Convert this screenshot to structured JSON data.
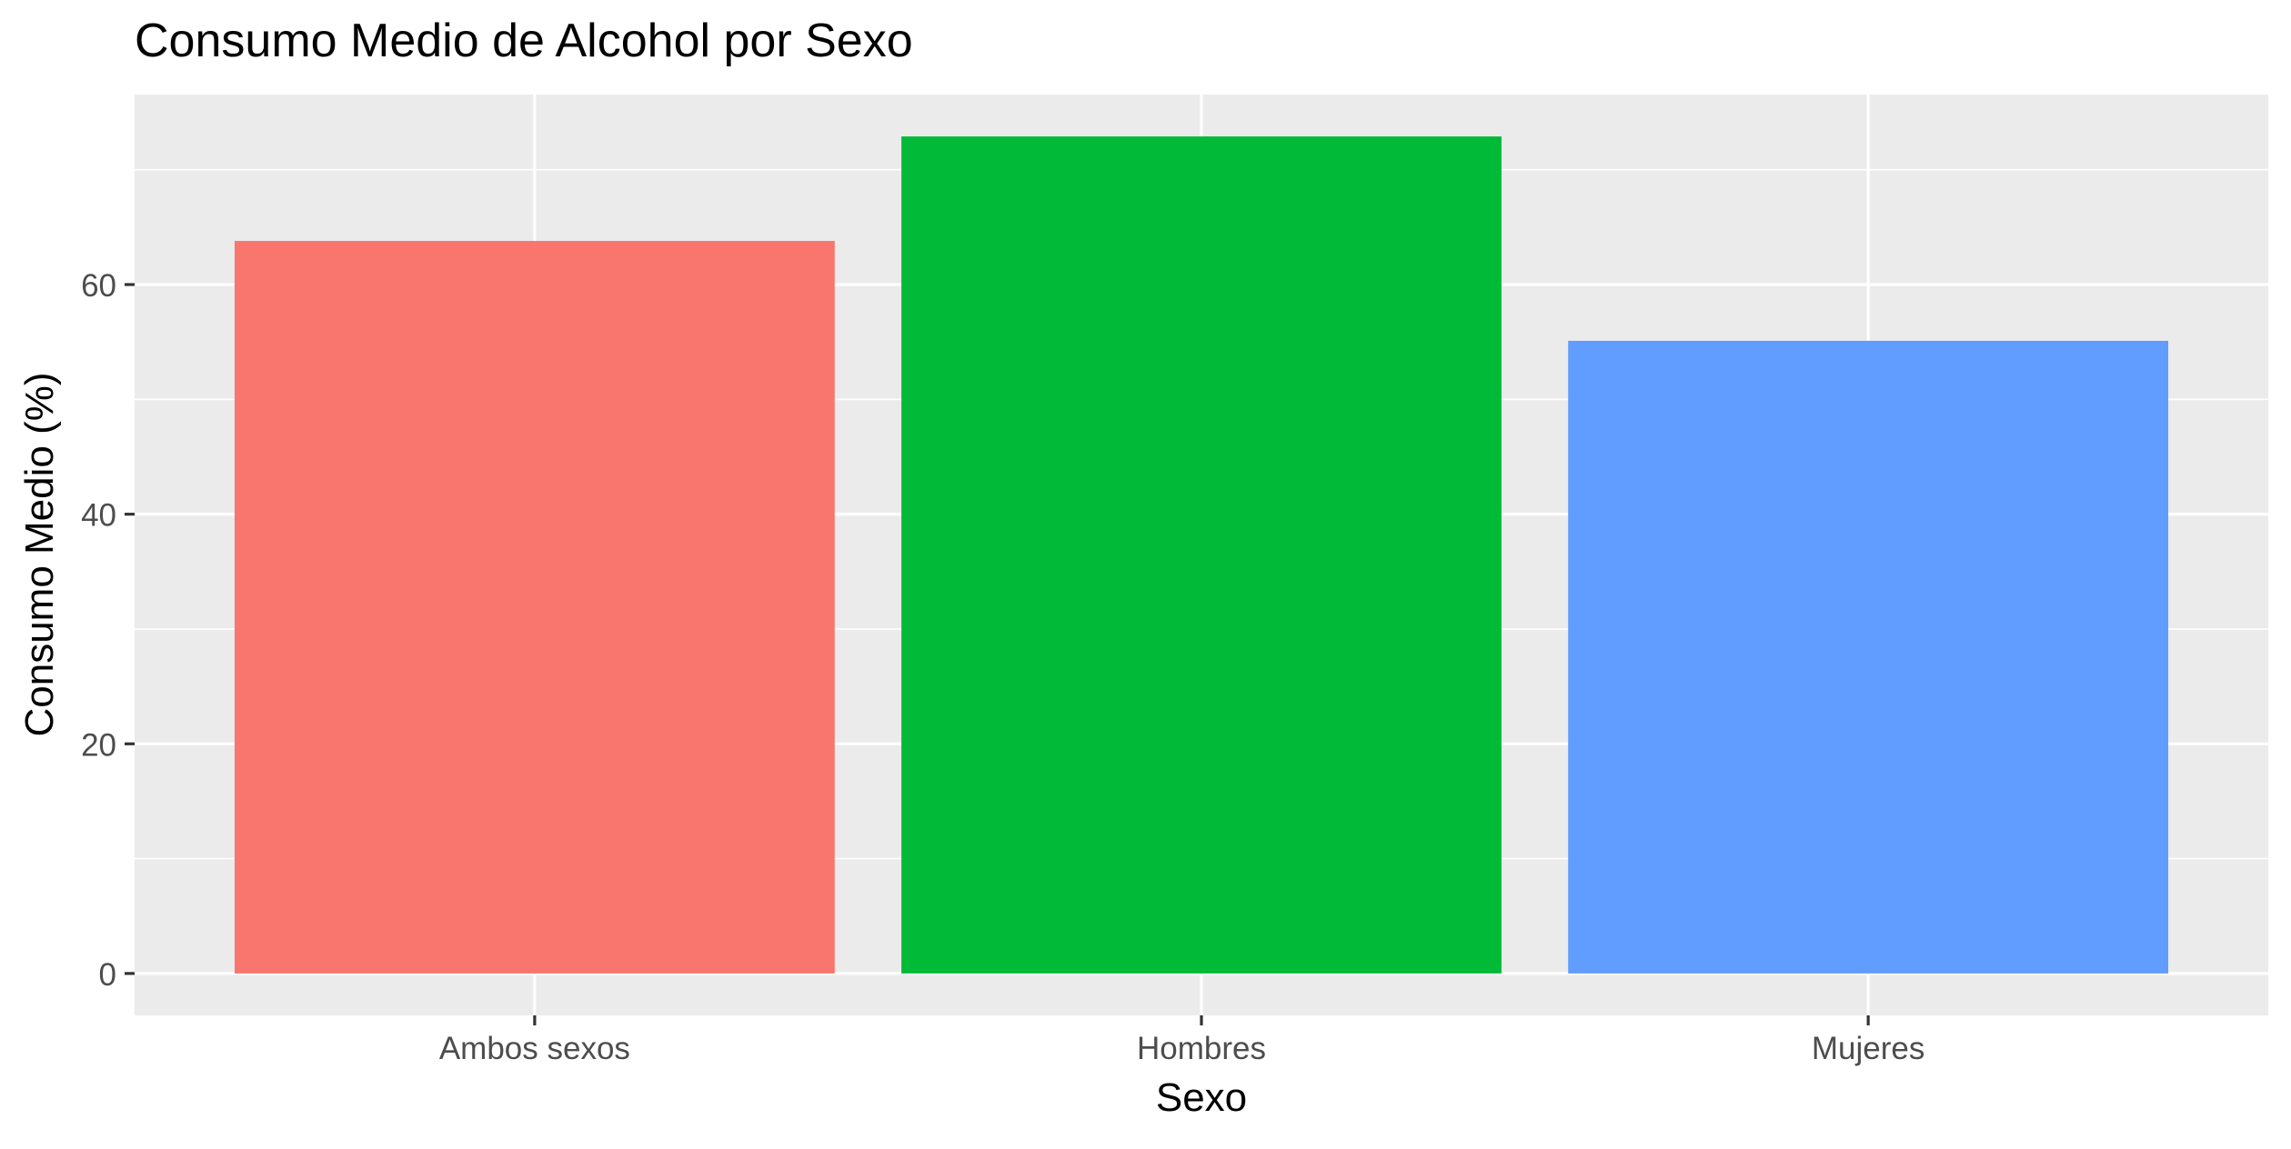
{
  "chart_data": {
    "type": "bar",
    "title": "Consumo Medio de Alcohol por Sexo",
    "xlabel": "Sexo",
    "ylabel": "Consumo Medio (%)",
    "categories": [
      "Ambos sexos",
      "Hombres",
      "Mujeres"
    ],
    "values": [
      63.8,
      72.9,
      55.1
    ],
    "colors": [
      "#F8766D",
      "#00BA38",
      "#619CFF"
    ],
    "ylim": [
      -3.65,
      76.55
    ],
    "yticks": [
      0,
      20,
      40,
      60
    ],
    "ytick_labels": [
      "0",
      "20",
      "40",
      "60"
    ],
    "grid": true,
    "legend": "none",
    "panel_background": "#EBEBEB",
    "gridline_color": "#FFFFFF"
  }
}
